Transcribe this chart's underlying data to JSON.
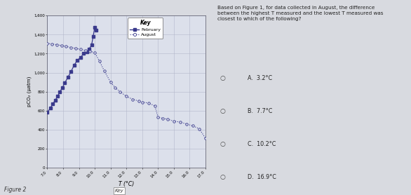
{
  "xlabel": "T (°C)",
  "ylabel": "pCO₂ (µatm)",
  "xlim": [
    7.0,
    17.0
  ],
  "ylim": [
    0,
    1600
  ],
  "xticks": [
    7.0,
    8.0,
    9.0,
    10.0,
    11.0,
    12.0,
    13.0,
    14.0,
    15.0,
    16.0,
    17.0
  ],
  "xtick_labels": [
    "7.0",
    "8.0",
    "9.0",
    "10.0",
    "11.0",
    "12.0",
    "13.0",
    "14.0",
    "15.0",
    "16.0",
    "17.0"
  ],
  "yticks": [
    0,
    200,
    400,
    600,
    800,
    1000,
    1200,
    1400,
    1600
  ],
  "ytick_labels": [
    "0",
    "200",
    "400",
    "600",
    "800",
    "1,000",
    "1,200",
    "1,400",
    "1,600"
  ],
  "february_T": [
    7.0,
    7.2,
    7.35,
    7.5,
    7.65,
    7.8,
    7.95,
    8.1,
    8.3,
    8.5,
    8.7,
    8.9,
    9.1,
    9.3,
    9.5,
    9.65,
    9.8,
    9.9,
    10.0,
    10.1
  ],
  "february_pCO2": [
    580,
    630,
    670,
    710,
    750,
    800,
    840,
    890,
    950,
    1010,
    1080,
    1130,
    1160,
    1200,
    1220,
    1250,
    1290,
    1380,
    1480,
    1450
  ],
  "august_T": [
    7.0,
    7.3,
    7.6,
    7.9,
    8.2,
    8.5,
    8.8,
    9.1,
    9.4,
    9.7,
    10.0,
    10.3,
    10.6,
    11.0,
    11.3,
    11.6,
    12.0,
    12.4,
    12.8,
    13.0,
    13.4,
    13.8,
    14.0,
    14.3,
    14.6,
    15.0,
    15.4,
    15.8,
    16.2,
    16.6,
    17.0
  ],
  "august_pCO2": [
    1310,
    1300,
    1295,
    1285,
    1275,
    1265,
    1255,
    1245,
    1235,
    1225,
    1210,
    1120,
    1020,
    900,
    840,
    800,
    750,
    720,
    700,
    690,
    680,
    650,
    530,
    520,
    510,
    490,
    480,
    460,
    440,
    410,
    310
  ],
  "line_color": "#3a3a8c",
  "bg_color": "#e8eaf0",
  "chart_bg": "#dce0eb",
  "grid_color": "#b0b4c8",
  "key_title": "Key",
  "key_feb": "February",
  "key_aug": "August",
  "figure2_label": "Figure 2",
  "question_text": "Based on Figure 1, for data collected in August, the difference\nbetween the highest T measured and the lowest T measured was\nclosest to which of the following?",
  "options": [
    "A.  3.2°C",
    "B.  7.7°C",
    "C.  10.2°C",
    "D.  16.9°C"
  ],
  "outer_bg": "#d8dae0",
  "right_bg": "#e8e8e8"
}
